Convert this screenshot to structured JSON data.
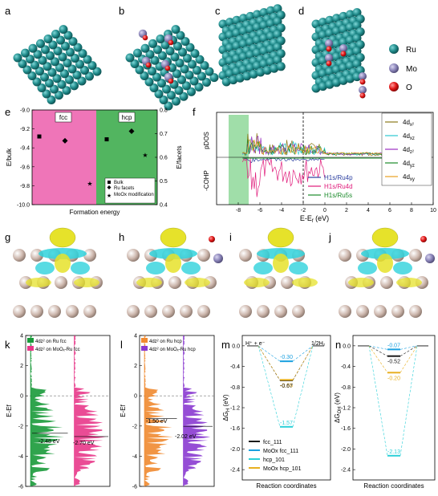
{
  "panel_letters": [
    "a",
    "b",
    "c",
    "d",
    "e",
    "f",
    "g",
    "h",
    "i",
    "j",
    "k",
    "l",
    "m",
    "n"
  ],
  "legend_atoms": [
    {
      "label": "Ru",
      "color": "#1f8a8a"
    },
    {
      "label": "Mo",
      "color": "#8a84b8"
    },
    {
      "label": "O",
      "color": "#e01515"
    }
  ],
  "colors": {
    "ru": "#1f8a8a",
    "mo": "#8a84b8",
    "o": "#e01515",
    "fcc_bg": "#ef75b8",
    "hcp_bg": "#52b560",
    "iso_yellow": "#e6e22a",
    "iso_cyan": "#2fd2dc",
    "slab_atom": "#cdb7ad",
    "red_atom": "#e42a2a"
  },
  "panel_e": {
    "fcc_label": "fcc",
    "hcp_label": "hcp",
    "ylabel_left": "E/bulk",
    "ylabel_right": "E/facets",
    "xlabel": "Formation energy",
    "left_ticks": [
      "-9.0",
      "-9.2",
      "-9.4",
      "-9.6",
      "-9.8",
      "-10.0"
    ],
    "right_ticks": [
      "0.8",
      "0.7",
      "0.6",
      "0.5",
      "0.4"
    ],
    "legend": [
      "Bulk",
      "Ru facets",
      "MoOx modification"
    ],
    "chart_data": {
      "type": "scatter",
      "xlabel": "Formation energy",
      "ylabel": "E/bulk",
      "ylim": [
        -10.0,
        -9.0
      ],
      "y2label": "E/facets",
      "y2lim": [
        0.4,
        0.8
      ],
      "series": [
        {
          "name": "Bulk",
          "axis": "left",
          "points": [
            {
              "x": "fcc",
              "y": -9.28
            },
            {
              "x": "hcp",
              "y": -9.31
            }
          ]
        },
        {
          "name": "Ru facets",
          "axis": "right",
          "points": [
            {
              "x": "fcc",
              "y": 0.67
            },
            {
              "x": "hcp",
              "y": 0.71
            }
          ]
        },
        {
          "name": "MoOx modification",
          "axis": "right",
          "points": [
            {
              "x": "fcc",
              "y": 0.49
            },
            {
              "x": "hcp",
              "y": 0.61
            }
          ]
        }
      ]
    }
  },
  "panel_f": {
    "top_label": "pDOS",
    "bottom_label": "-COHP",
    "xlabel": "E-E",
    "xlabel_sub": "f",
    "xlabel_unit": " (eV)",
    "xticks": [
      "-8",
      "-6",
      "-4",
      "-2",
      "0",
      "2",
      "4",
      "6",
      "8",
      "10"
    ],
    "legend_orbitals": [
      {
        "label": "4d",
        "sub": "x²",
        "color": "#8b7a1a"
      },
      {
        "label": "4d",
        "sub": "xz",
        "color": "#2bc8d0"
      },
      {
        "label": "4d",
        "sub": "z²",
        "color": "#9b30c0"
      },
      {
        "label": "4d",
        "sub": "yz",
        "color": "#1a8a2a"
      },
      {
        "label": "4d",
        "sub": "xy",
        "color": "#e8a020"
      }
    ],
    "legend_cohp": [
      {
        "label": "H1s/Ru4p",
        "color": "#2b3fa0"
      },
      {
        "label": "H1s/Ru4d",
        "color": "#e01a7a"
      },
      {
        "label": "H1s/Ru5s",
        "color": "#1a8a2a"
      }
    ],
    "chart_data": {
      "type": "line",
      "xlabel": "E-Ef (eV)",
      "xlim": [
        -10,
        10
      ],
      "series": [
        {
          "name": "4dx²"
        },
        {
          "name": "4dxz"
        },
        {
          "name": "4dz²"
        },
        {
          "name": "4dyz"
        },
        {
          "name": "4dxy"
        },
        {
          "name": "H1s/Ru4p"
        },
        {
          "name": "H1s/Ru4d"
        },
        {
          "name": "H1s/Ru5s"
        }
      ]
    }
  },
  "panel_k": {
    "ylabel": "E-Ef",
    "yticks": [
      "4",
      "2",
      "0",
      "-2",
      "-4",
      "-6"
    ],
    "legend": [
      {
        "label": "4dz² on Ru fcc",
        "color": "#1a9a3a"
      },
      {
        "label": "4dz² on MoOₓ-Ru fcc",
        "color": "#e8388a"
      }
    ],
    "annotations": [
      "-2.48 eV",
      "-2.70 eV"
    ],
    "chart_data": {
      "type": "area",
      "ylim": [
        -6,
        4
      ],
      "d_band_centers": [
        {
          "name": "4dz² on Ru fcc",
          "value": -2.48
        },
        {
          "name": "4dz² on MoOx-Ru fcc",
          "value": -2.7
        }
      ]
    }
  },
  "panel_l": {
    "ylabel": "E-Ef",
    "yticks": [
      "4",
      "2",
      "0",
      "-2",
      "-4",
      "-6"
    ],
    "legend": [
      {
        "label": "4dz² on Ru hcp",
        "color": "#f08a30"
      },
      {
        "label": "4dz² on MoOₓ-Ru hcp",
        "color": "#8a3ad0"
      }
    ],
    "annotations": [
      "-1.50 eV",
      "-2.02 eV"
    ],
    "chart_data": {
      "type": "area",
      "ylim": [
        -6,
        4
      ],
      "d_band_centers": [
        {
          "name": "4dz² on Ru hcp",
          "value": -1.5
        },
        {
          "name": "4dz² on MoOx-Ru hcp",
          "value": -2.02
        }
      ]
    }
  },
  "panel_m": {
    "ylabel": "ΔG",
    "ylabel_sub": "H",
    "ylabel_unit": " (eV)",
    "xlabel": "Reaction coordinates",
    "left_label": "H⁺ + e⁻",
    "right_label": "1/2H₂",
    "yticks": [
      "0.0",
      "-0.4",
      "-0.8",
      "-1.2",
      "-1.6",
      "-2.0",
      "-2.4"
    ],
    "values_text": [
      "-0.30",
      "-0.66",
      "-0.67",
      "-1.57"
    ],
    "legend": [
      {
        "label": "fcc_111",
        "color": "#1a1a1a"
      },
      {
        "label": "MoOx fcc_111",
        "color": "#1aa0e0"
      },
      {
        "label": "hcp_101",
        "color": "#2ad0d8"
      },
      {
        "label": "MoOx hcp_101",
        "color": "#e8b020"
      }
    ],
    "chart_data": {
      "type": "line",
      "ylim": [
        -2.6,
        0.2
      ],
      "series": [
        {
          "name": "fcc_111",
          "values": [
            0,
            -0.67,
            0
          ]
        },
        {
          "name": "MoOx fcc_111",
          "values": [
            0,
            -0.3,
            0
          ]
        },
        {
          "name": "hcp_101",
          "values": [
            0,
            -1.57,
            0
          ]
        },
        {
          "name": "MoOx hcp_101",
          "values": [
            0,
            -0.66,
            0
          ]
        }
      ]
    }
  },
  "panel_n": {
    "ylabel": "ΔG",
    "ylabel_sub": "OH",
    "ylabel_unit": " (eV)",
    "xlabel": "Reaction coordinates",
    "yticks": [
      "0.0",
      "-0.4",
      "-0.8",
      "-1.2",
      "-1.6",
      "-2.0",
      "-2.4"
    ],
    "values_text": [
      "-0.07",
      "-0.20",
      "-0.52",
      "-2.13"
    ],
    "chart_data": {
      "type": "line",
      "ylim": [
        -2.6,
        0.2
      ],
      "series": [
        {
          "name": "fcc_111",
          "values": [
            0,
            -0.2,
            0
          ]
        },
        {
          "name": "MoOx fcc_111",
          "values": [
            0,
            -0.07,
            0
          ]
        },
        {
          "name": "hcp_101",
          "values": [
            0,
            -2.13,
            0
          ]
        },
        {
          "name": "MoOx hcp_101",
          "values": [
            0,
            -0.52,
            0
          ]
        }
      ]
    }
  }
}
